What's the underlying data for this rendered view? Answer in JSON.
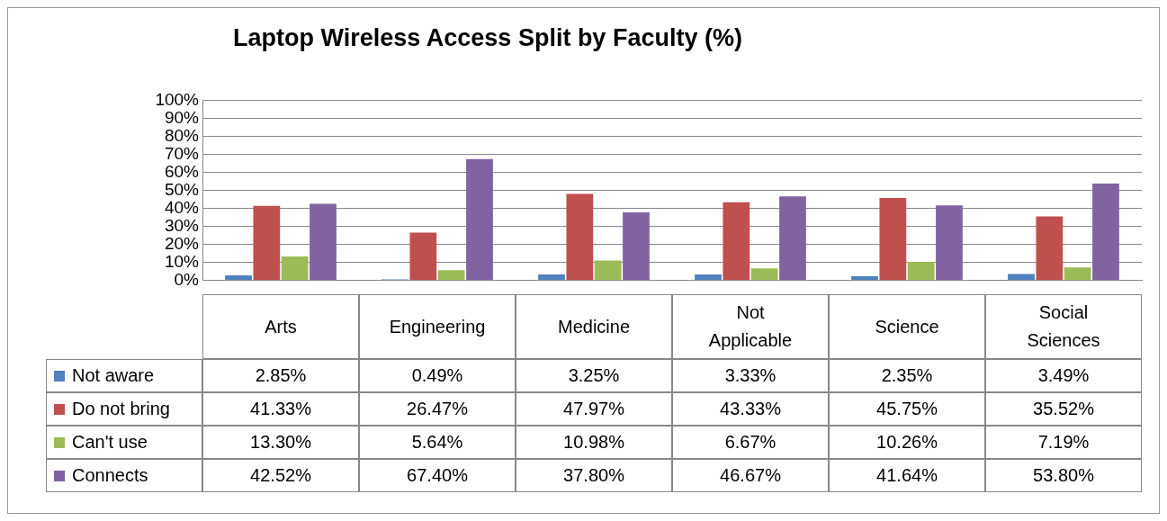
{
  "chart_data": {
    "type": "bar",
    "title": "Laptop Wireless Access Split by Faculty (%)",
    "categories": [
      "Arts",
      "Engineering",
      "Medicine",
      "Not Applicable",
      "Science",
      "Social Sciences"
    ],
    "series": [
      {
        "name": "Not aware",
        "color": "#4f81bd",
        "values": [
          2.85,
          0.49,
          3.25,
          3.33,
          2.35,
          3.49
        ],
        "value_labels": [
          "2.85%",
          "0.49%",
          "3.25%",
          "3.33%",
          "2.35%",
          "3.49%"
        ]
      },
      {
        "name": "Do not bring",
        "color": "#c0504d",
        "values": [
          41.33,
          26.47,
          47.97,
          43.33,
          45.75,
          35.52
        ],
        "value_labels": [
          "41.33%",
          "26.47%",
          "47.97%",
          "43.33%",
          "45.75%",
          "35.52%"
        ]
      },
      {
        "name": "Can't use",
        "color": "#9bbb59",
        "values": [
          13.3,
          5.64,
          10.98,
          6.67,
          10.26,
          7.19
        ],
        "value_labels": [
          "13.30%",
          "5.64%",
          "10.98%",
          "6.67%",
          "10.26%",
          "7.19%"
        ]
      },
      {
        "name": "Connects",
        "color": "#8064a2",
        "values": [
          42.52,
          67.4,
          37.8,
          46.67,
          41.64,
          53.8
        ],
        "value_labels": [
          "42.52%",
          "67.40%",
          "37.80%",
          "46.67%",
          "41.64%",
          "53.80%"
        ]
      }
    ],
    "ylim": [
      0,
      100
    ],
    "yticks": [
      {
        "value": 0,
        "label": "0%"
      },
      {
        "value": 10,
        "label": "10%"
      },
      {
        "value": 20,
        "label": "20%"
      },
      {
        "value": 30,
        "label": "30%"
      },
      {
        "value": 40,
        "label": "40%"
      },
      {
        "value": 50,
        "label": "50%"
      },
      {
        "value": 60,
        "label": "60%"
      },
      {
        "value": 70,
        "label": "70%"
      },
      {
        "value": 80,
        "label": "80%"
      },
      {
        "value": 90,
        "label": "90%"
      },
      {
        "value": 100,
        "label": "100%"
      }
    ],
    "grid": "y",
    "legend": "bottom left"
  }
}
